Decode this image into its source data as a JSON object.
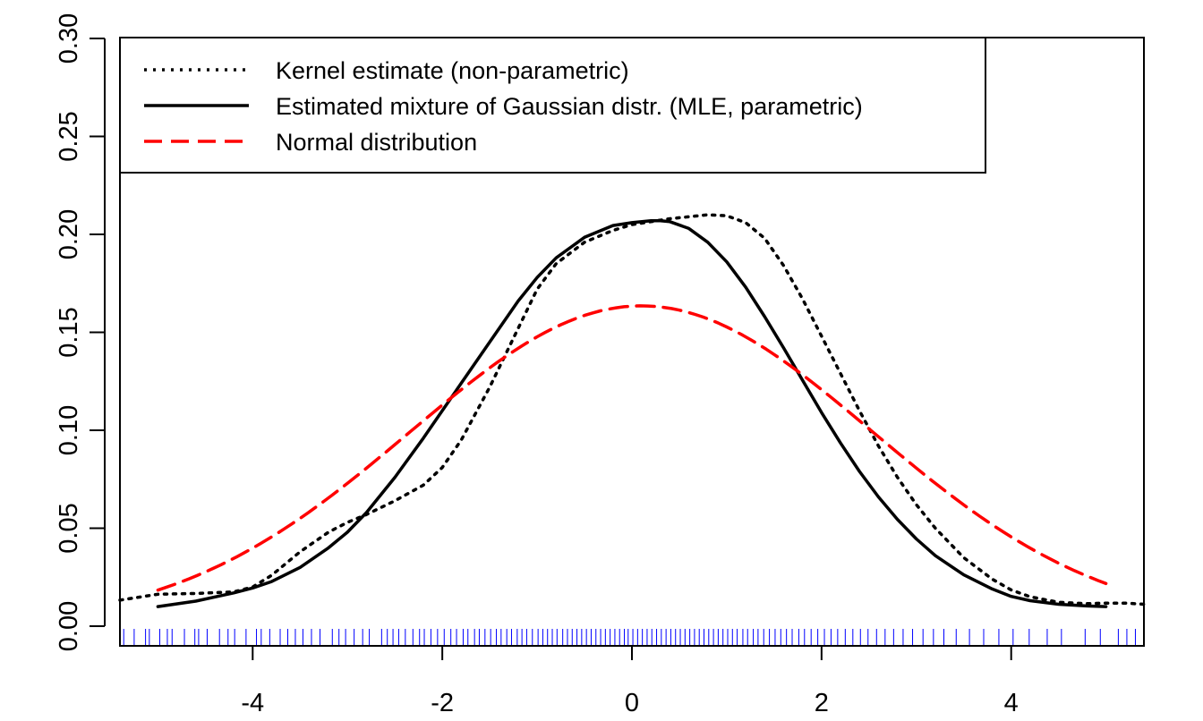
{
  "chart_data": {
    "type": "line",
    "title": "",
    "xlabel": "",
    "ylabel": "",
    "xlim": [
      -5.4,
      5.4
    ],
    "ylim": [
      0,
      0.3
    ],
    "grid": false,
    "legend_position": "top-left",
    "x_ticks": [
      {
        "value": -4,
        "label": "-4"
      },
      {
        "value": -2,
        "label": "-2"
      },
      {
        "value": 0,
        "label": "0"
      },
      {
        "value": 2,
        "label": "2"
      },
      {
        "value": 4,
        "label": "4"
      }
    ],
    "y_ticks": [
      {
        "value": 0,
        "label": "0.00"
      },
      {
        "value": 0.05,
        "label": "0.05"
      },
      {
        "value": 0.1,
        "label": "0.10"
      },
      {
        "value": 0.15,
        "label": "0.15"
      },
      {
        "value": 0.2,
        "label": "0.20"
      },
      {
        "value": 0.25,
        "label": "0.25"
      },
      {
        "value": 0.3,
        "label": "0.30"
      }
    ],
    "series": [
      {
        "name": "Kernel estimate (non-parametric)",
        "style": "dotted",
        "color": "#000000",
        "x": [
          -5.4,
          -5.0,
          -4.6,
          -4.2,
          -4.0,
          -3.8,
          -3.5,
          -3.2,
          -3.0,
          -2.8,
          -2.5,
          -2.2,
          -2.0,
          -1.8,
          -1.5,
          -1.2,
          -1.0,
          -0.8,
          -0.5,
          -0.2,
          0.0,
          0.2,
          0.4,
          0.6,
          0.8,
          1.0,
          1.2,
          1.4,
          1.6,
          1.8,
          2.0,
          2.2,
          2.4,
          2.6,
          2.8,
          3.0,
          3.2,
          3.5,
          3.8,
          4.0,
          4.2,
          4.5,
          4.8,
          5.0,
          5.2,
          5.4
        ],
        "y": [
          0.0133,
          0.0163,
          0.0167,
          0.0175,
          0.02,
          0.026,
          0.038,
          0.048,
          0.053,
          0.057,
          0.064,
          0.072,
          0.081,
          0.095,
          0.122,
          0.152,
          0.172,
          0.185,
          0.196,
          0.202,
          0.205,
          0.2065,
          0.208,
          0.209,
          0.21,
          0.2095,
          0.206,
          0.198,
          0.184,
          0.167,
          0.148,
          0.129,
          0.11,
          0.092,
          0.076,
          0.062,
          0.05,
          0.035,
          0.024,
          0.0185,
          0.015,
          0.0122,
          0.0115,
          0.0118,
          0.0118,
          0.0112
        ]
      },
      {
        "name": "Estimated mixture of Gaussian distr. (MLE, parametric)",
        "style": "solid",
        "color": "#000000",
        "x": [
          -5.0,
          -4.6,
          -4.2,
          -4.0,
          -3.8,
          -3.5,
          -3.2,
          -3.0,
          -2.8,
          -2.5,
          -2.2,
          -2.0,
          -1.8,
          -1.5,
          -1.2,
          -1.0,
          -0.8,
          -0.5,
          -0.2,
          0.0,
          0.2,
          0.3,
          0.4,
          0.6,
          0.8,
          1.0,
          1.2,
          1.4,
          1.6,
          1.8,
          2.0,
          2.2,
          2.4,
          2.6,
          2.8,
          3.0,
          3.2,
          3.5,
          3.8,
          4.0,
          4.2,
          4.5,
          4.8,
          5.0
        ],
        "y": [
          0.01,
          0.0128,
          0.017,
          0.0195,
          0.0228,
          0.03,
          0.04,
          0.048,
          0.058,
          0.076,
          0.096,
          0.11,
          0.124,
          0.145,
          0.166,
          0.178,
          0.188,
          0.1985,
          0.2045,
          0.206,
          0.207,
          0.207,
          0.2065,
          0.203,
          0.196,
          0.186,
          0.173,
          0.158,
          0.142,
          0.1255,
          0.109,
          0.0935,
          0.079,
          0.066,
          0.0545,
          0.0445,
          0.036,
          0.0262,
          0.019,
          0.0152,
          0.013,
          0.0112,
          0.0103,
          0.01
        ]
      },
      {
        "name": "Normal distribution",
        "style": "dashed",
        "color": "#ff0000",
        "mean": 0.1,
        "sd": 2.44,
        "x_range": [
          -5.0,
          5.0
        ]
      }
    ],
    "rug": {
      "color": "#0000ff",
      "x": [
        -5.36,
        -5.25,
        -5.13,
        -5.09,
        -4.98,
        -4.9,
        -4.85,
        -4.72,
        -4.61,
        -4.57,
        -4.48,
        -4.35,
        -4.26,
        -4.19,
        -4.07,
        -3.96,
        -3.91,
        -3.82,
        -3.71,
        -3.63,
        -3.55,
        -3.47,
        -3.38,
        -3.29,
        -3.16,
        -3.09,
        -3.02,
        -2.93,
        -2.84,
        -2.77,
        -2.64,
        -2.58,
        -2.52,
        -2.46,
        -2.39,
        -2.31,
        -2.24,
        -2.19,
        -2.12,
        -2.05,
        -1.98,
        -1.91,
        -1.85,
        -1.78,
        -1.73,
        -1.66,
        -1.61,
        -1.55,
        -1.49,
        -1.43,
        -1.38,
        -1.32,
        -1.27,
        -1.21,
        -1.16,
        -1.11,
        -1.05,
        -0.99,
        -0.94,
        -0.89,
        -0.84,
        -0.79,
        -0.73,
        -0.68,
        -0.63,
        -0.58,
        -0.53,
        -0.48,
        -0.43,
        -0.38,
        -0.33,
        -0.28,
        -0.23,
        -0.18,
        -0.13,
        -0.08,
        -0.04,
        0.01,
        0.06,
        0.11,
        0.16,
        0.21,
        0.26,
        0.31,
        0.36,
        0.41,
        0.46,
        0.51,
        0.56,
        0.61,
        0.66,
        0.71,
        0.76,
        0.81,
        0.86,
        0.91,
        0.96,
        1.01,
        1.06,
        1.11,
        1.17,
        1.22,
        1.28,
        1.33,
        1.39,
        1.45,
        1.51,
        1.57,
        1.63,
        1.69,
        1.76,
        1.82,
        1.89,
        1.96,
        2.03,
        2.1,
        2.17,
        2.25,
        2.33,
        2.41,
        2.49,
        2.58,
        2.67,
        2.76,
        2.86,
        2.96,
        3.07,
        3.18,
        3.29,
        3.42,
        3.56,
        3.71,
        3.87,
        4.02,
        4.19,
        4.38,
        4.53,
        4.78,
        4.94,
        5.13,
        5.22,
        5.31
      ]
    },
    "legend": [
      {
        "label": "Kernel estimate (non-parametric)",
        "style": "dotted",
        "color": "#000000"
      },
      {
        "label": "Estimated mixture of Gaussian distr. (MLE, parametric)",
        "style": "solid",
        "color": "#000000"
      },
      {
        "label": "Normal distribution",
        "style": "dashed",
        "color": "#ff0000"
      }
    ]
  }
}
